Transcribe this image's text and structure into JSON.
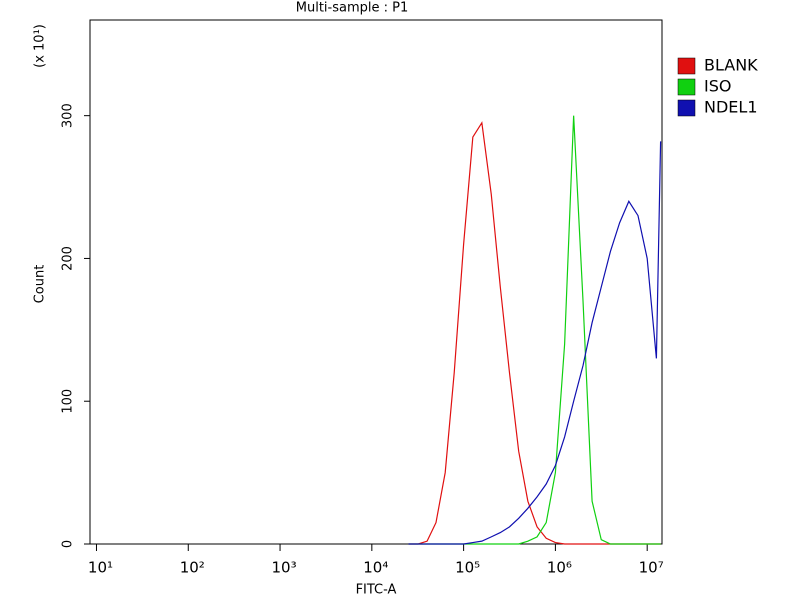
{
  "chart_data": {
    "type": "line",
    "title": "Multi-sample : P1",
    "x_label": "FITC-A",
    "y_label": "Count",
    "y_annotation": "(x 10¹)",
    "xscale": "log",
    "xlim": [
      8.5,
      14500000
    ],
    "xticks": [
      {
        "value": 10,
        "label": "10¹"
      },
      {
        "value": 100,
        "label": "10²"
      },
      {
        "value": 1000,
        "label": "10³"
      },
      {
        "value": 10000,
        "label": "10⁴"
      },
      {
        "value": 100000,
        "label": "10⁵"
      },
      {
        "value": 1000000,
        "label": "10⁶"
      },
      {
        "value": 10000000,
        "label": "10⁷"
      }
    ],
    "ylim": [
      0,
      367
    ],
    "yticks": [
      0,
      100,
      200,
      300
    ],
    "legend": "right",
    "x": [
      25000,
      32000,
      40000,
      50000,
      63000,
      79000,
      100000,
      126000,
      158000,
      200000,
      251000,
      316000,
      398000,
      501000,
      631000,
      794000,
      1000000,
      1260000,
      1580000,
      2000000,
      2510000,
      3160000,
      3980000,
      5010000,
      6310000,
      7940000,
      10000000,
      12600000,
      14000000
    ],
    "series": [
      {
        "name": "BLANK",
        "color": "#e01010",
        "values": [
          0,
          0,
          2,
          15,
          50,
          120,
          210,
          285,
          295,
          245,
          180,
          120,
          65,
          30,
          12,
          4,
          1,
          0,
          0,
          0,
          0,
          0,
          0,
          0,
          0,
          0,
          0,
          0,
          0
        ]
      },
      {
        "name": "ISO",
        "color": "#10d010",
        "values": [
          0,
          0,
          0,
          0,
          0,
          0,
          0,
          0,
          0,
          0,
          0,
          0,
          0,
          2,
          5,
          15,
          50,
          140,
          300,
          170,
          30,
          3,
          0,
          0,
          0,
          0,
          0,
          0,
          0
        ]
      },
      {
        "name": "NDEL1",
        "color": "#1010b0",
        "values": [
          0,
          0,
          0,
          0,
          0,
          0,
          0,
          1,
          2,
          5,
          8,
          12,
          18,
          25,
          33,
          42,
          55,
          75,
          100,
          125,
          155,
          180,
          205,
          225,
          240,
          230,
          200,
          130,
          282
        ]
      }
    ]
  }
}
